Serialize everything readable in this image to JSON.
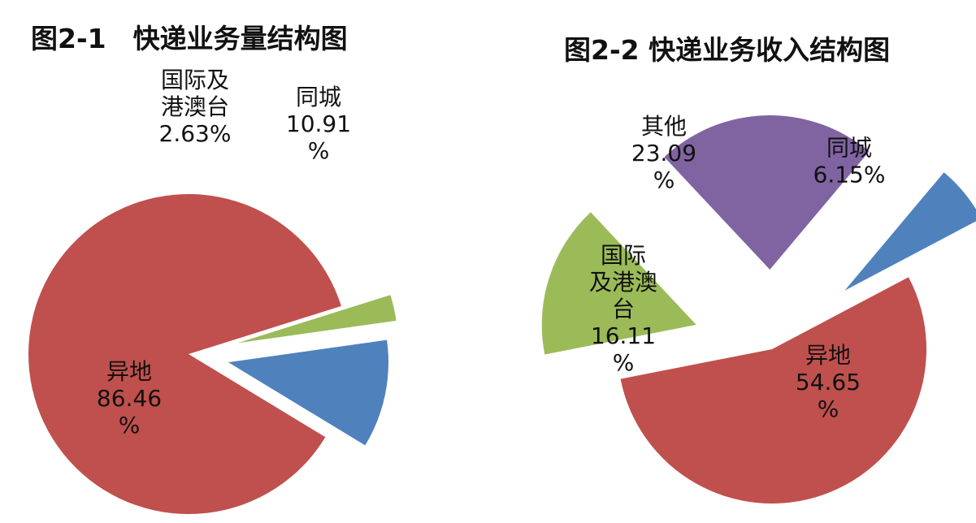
{
  "chart_data": [
    {
      "type": "pie",
      "title": "图2-1　快递业务量结构图",
      "exploded": true,
      "slices": [
        {
          "name": "同城",
          "value": 10.91,
          "label_lines": [
            "同城",
            "10.91",
            "%"
          ],
          "color": "#4f81bd"
        },
        {
          "name": "异地",
          "value": 86.46,
          "label_lines": [
            "异地",
            "86.46",
            "%"
          ],
          "color": "#c0504d"
        },
        {
          "name": "国际及港澳台",
          "value": 2.63,
          "label_lines": [
            "国际及",
            "港澳台",
            "2.63%"
          ],
          "color": "#9bbb59"
        }
      ]
    },
    {
      "type": "pie",
      "title": "图2-2 快递业务收入结构图",
      "exploded": true,
      "slices": [
        {
          "name": "同城",
          "value": 6.15,
          "label_lines": [
            "同城",
            "6.15%"
          ],
          "color": "#4f81bd"
        },
        {
          "name": "异地",
          "value": 54.65,
          "label_lines": [
            "异地",
            "54.65",
            "%"
          ],
          "color": "#c0504d"
        },
        {
          "name": "国际及港澳台",
          "value": 16.11,
          "label_lines": [
            "国际",
            "及港澳",
            "台",
            "16.11",
            "%"
          ],
          "color": "#9bbb59"
        },
        {
          "name": "其他",
          "value": 23.09,
          "label_lines": [
            "其他",
            "23.09",
            "%"
          ],
          "color": "#8064a2"
        }
      ]
    }
  ]
}
